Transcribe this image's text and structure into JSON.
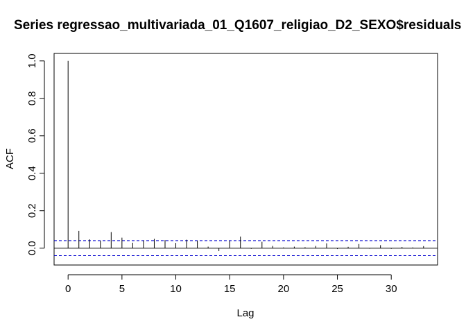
{
  "chart_data": {
    "type": "bar",
    "title": "Series  regressao_multivariada_01_Q1607_religiao_D2_SEXO$residuals",
    "xlabel": "Lag",
    "ylabel": "ACF",
    "xlim": [
      -1.3,
      34.3
    ],
    "ylim": [
      -0.09,
      1.04
    ],
    "x_ticks": [
      "0",
      "5",
      "10",
      "15",
      "20",
      "25",
      "30"
    ],
    "y_ticks": [
      "0.0",
      "0.2",
      "0.4",
      "0.6",
      "0.8",
      "1.0"
    ],
    "grid": false,
    "confidence_bound": 0.04,
    "colors": {
      "bars": "#000000",
      "bounds": "#0000cd",
      "axes": "#000000"
    },
    "x": [
      0,
      1,
      2,
      3,
      4,
      5,
      6,
      7,
      8,
      9,
      10,
      11,
      12,
      13,
      14,
      15,
      16,
      17,
      18,
      19,
      20,
      21,
      22,
      23,
      24,
      25,
      26,
      27,
      28,
      29,
      30,
      31,
      32,
      33
    ],
    "values": [
      1.0,
      0.092,
      0.047,
      0.04,
      0.086,
      0.056,
      0.029,
      0.041,
      0.05,
      0.043,
      0.028,
      0.045,
      0.04,
      0.008,
      -0.016,
      0.039,
      0.062,
      -0.004,
      0.034,
      0.012,
      0.004,
      0.008,
      0.005,
      0.012,
      0.026,
      -0.005,
      0.007,
      0.022,
      -0.003,
      0.016,
      -0.004,
      0.006,
      0.004,
      0.011
    ]
  }
}
